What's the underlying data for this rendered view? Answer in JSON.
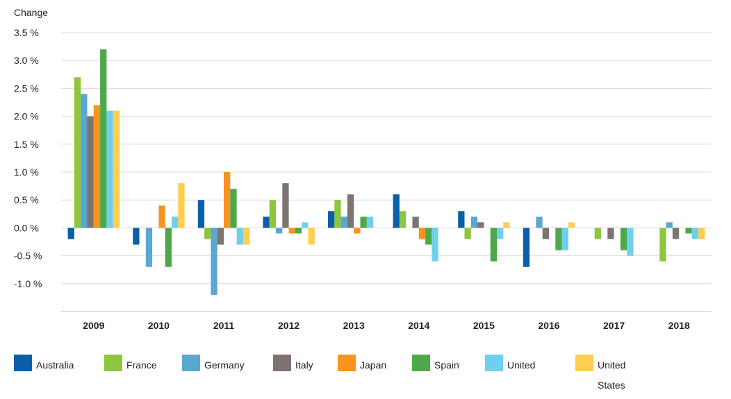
{
  "chart_data": {
    "type": "bar",
    "ylabel": "Change",
    "ylim": [
      -1.5,
      3.5
    ],
    "yticks": [
      3.5,
      3.0,
      2.5,
      2.0,
      1.5,
      1.0,
      0.5,
      0.0,
      -0.5,
      -1.0
    ],
    "ytick_labels": [
      "3.5 %",
      "3.0 %",
      "2.5 %",
      "2.0 %",
      "1.5 %",
      "1.0 %",
      "0.5 %",
      "0.0 %",
      "-0.5 %",
      "-1.0 %"
    ],
    "grid": true,
    "legend_position": "bottom",
    "categories": [
      "2009",
      "2010",
      "2011",
      "2012",
      "2013",
      "2014",
      "2015",
      "2016",
      "2017",
      "2018"
    ],
    "series": [
      {
        "name": "Australia",
        "color": "#0b5ea8",
        "values": [
          -0.2,
          -0.3,
          0.5,
          0.2,
          0.3,
          0.6,
          0.3,
          -0.7,
          0.0,
          0.0
        ]
      },
      {
        "name": "France",
        "color": "#8dc63f",
        "values": [
          2.7,
          0.0,
          -0.2,
          0.5,
          0.5,
          0.3,
          -0.2,
          0.0,
          -0.2,
          -0.6
        ]
      },
      {
        "name": "Germany",
        "color": "#5aa7cf",
        "values": [
          2.4,
          -0.7,
          -1.2,
          -0.1,
          0.2,
          0.0,
          0.2,
          0.2,
          0.0,
          0.1
        ]
      },
      {
        "name": "Italy",
        "color": "#7d746f",
        "values": [
          2.0,
          0.0,
          -0.3,
          0.8,
          0.6,
          0.2,
          0.1,
          -0.2,
          -0.2,
          -0.2
        ]
      },
      {
        "name": "Japan",
        "color": "#f7931e",
        "values": [
          2.2,
          0.4,
          1.0,
          -0.1,
          -0.1,
          -0.2,
          0.0,
          0.0,
          0.0,
          0.0
        ]
      },
      {
        "name": "Spain",
        "color": "#4ea84a",
        "values": [
          3.2,
          -0.7,
          0.7,
          -0.1,
          0.2,
          -0.3,
          -0.6,
          -0.4,
          -0.4,
          -0.1
        ]
      },
      {
        "name": "United",
        "color": "#6fd0ee",
        "values": [
          2.1,
          0.2,
          -0.3,
          0.1,
          0.2,
          -0.6,
          -0.2,
          -0.4,
          -0.5,
          -0.2
        ]
      },
      {
        "name": "United States",
        "color": "#ffcd4f",
        "values": [
          2.1,
          0.8,
          -0.3,
          -0.3,
          0.0,
          0.0,
          0.1,
          0.1,
          0.0,
          -0.2
        ]
      }
    ]
  },
  "legend": [
    {
      "label": "Australia",
      "color": "#0b5ea8"
    },
    {
      "label": "France",
      "color": "#8dc63f"
    },
    {
      "label": "Germany",
      "color": "#5aa7cf"
    },
    {
      "label": "Italy",
      "color": "#7d746f"
    },
    {
      "label": "Japan",
      "color": "#f7931e"
    },
    {
      "label": "Spain",
      "color": "#4ea84a"
    },
    {
      "label": "United",
      "color": "#6fd0ee"
    },
    {
      "label": "United States",
      "color": "#ffcd4f"
    }
  ]
}
